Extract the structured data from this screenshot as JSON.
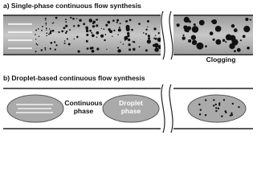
{
  "panels": [
    {
      "label": "a) Single-phase continuous flow synthesis",
      "annotations": [
        "Clogging"
      ]
    },
    {
      "label": "b) Droplet-based continuous flow synthesis",
      "annotations": [
        [
          "Continuous",
          "phase"
        ],
        [
          "Droplet",
          "phase"
        ]
      ]
    }
  ]
}
